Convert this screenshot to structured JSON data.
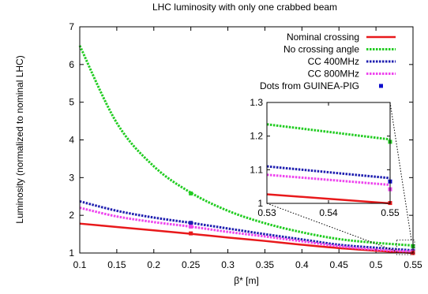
{
  "chart_data": {
    "type": "line",
    "title": "LHC luminosity with only one crabbed beam",
    "xlabel": "β* [m]",
    "ylabel": "Luminosity  (normalized to nominal LHC)",
    "xlim": [
      0.1,
      0.55
    ],
    "ylim": [
      1,
      7
    ],
    "xticks": [
      "0.1",
      "0.15",
      "0.2",
      "0.25",
      "0.3",
      "0.35",
      "0.4",
      "0.45",
      "0.5",
      "0.55"
    ],
    "yticks": [
      "1",
      "2",
      "3",
      "4",
      "5",
      "6",
      "7"
    ],
    "x": [
      0.1,
      0.15,
      0.2,
      0.25,
      0.3,
      0.35,
      0.4,
      0.45,
      0.5,
      0.55
    ],
    "legend_position": "top-right",
    "series": [
      {
        "name": "Nominal crossing",
        "color": "#e8191b",
        "style": "solid",
        "values": [
          1.78,
          1.69,
          1.6,
          1.51,
          1.41,
          1.32,
          1.22,
          1.13,
          1.06,
          1.0
        ]
      },
      {
        "name": "No crossing angle",
        "color": "#22cc22",
        "style": "dotted",
        "values": [
          6.5,
          4.45,
          3.3,
          2.6,
          2.12,
          1.79,
          1.55,
          1.37,
          1.27,
          1.2
        ]
      },
      {
        "name": "CC 400MHz",
        "color": "#1f1fb0",
        "style": "dotted",
        "values": [
          2.37,
          2.12,
          1.94,
          1.8,
          1.65,
          1.5,
          1.36,
          1.22,
          1.14,
          1.07
        ]
      },
      {
        "name": "CC 800MHz",
        "color": "#ee44ee",
        "style": "dotted",
        "values": [
          2.2,
          1.97,
          1.82,
          1.7,
          1.56,
          1.44,
          1.31,
          1.18,
          1.09,
          1.04
        ]
      }
    ],
    "dots": {
      "name": "Dots from GUINEA-PIG",
      "color": "#0d0dcc",
      "points": [
        {
          "x": 0.25,
          "y": 2.58,
          "color": "#22cc22"
        },
        {
          "x": 0.25,
          "y": 1.8,
          "color": "#1f1fb0"
        },
        {
          "x": 0.25,
          "y": 1.7,
          "color": "#ee44ee"
        },
        {
          "x": 0.25,
          "y": 1.52,
          "color": "#e8191b"
        },
        {
          "x": 0.55,
          "y": 1.18,
          "color": "#22cc22"
        },
        {
          "x": 0.55,
          "y": 1.06,
          "color": "#1f1fb0"
        },
        {
          "x": 0.55,
          "y": 1.04,
          "color": "#ee44ee"
        },
        {
          "x": 0.55,
          "y": 1.0,
          "color": "#e8191b"
        }
      ]
    },
    "inset": {
      "xlim": [
        0.53,
        0.55
      ],
      "ylim": [
        1,
        1.3
      ],
      "xticks": [
        "0.53",
        "0.54",
        "0.55"
      ],
      "yticks": [
        "1",
        "1.1",
        "1.2",
        "1.3"
      ],
      "series": [
        {
          "name": "Nominal crossing",
          "x": [
            0.53,
            0.55
          ],
          "values": [
            1.027,
            1.0
          ]
        },
        {
          "name": "No crossing angle",
          "x": [
            0.53,
            0.55
          ],
          "values": [
            1.235,
            1.19
          ]
        },
        {
          "name": "CC 400MHz",
          "x": [
            0.53,
            0.55
          ],
          "values": [
            1.11,
            1.075
          ]
        },
        {
          "name": "CC 800MHz",
          "x": [
            0.53,
            0.55
          ],
          "values": [
            1.085,
            1.055
          ]
        }
      ],
      "dots": [
        {
          "x": 0.55,
          "y": 1.183,
          "color": "#22cc22"
        },
        {
          "x": 0.55,
          "y": 1.065,
          "color": "#0d0dcc"
        },
        {
          "x": 0.55,
          "y": 1.042,
          "color": "#ee44ee"
        },
        {
          "x": 0.55,
          "y": 1.001,
          "color": "#e8191b"
        }
      ]
    }
  }
}
